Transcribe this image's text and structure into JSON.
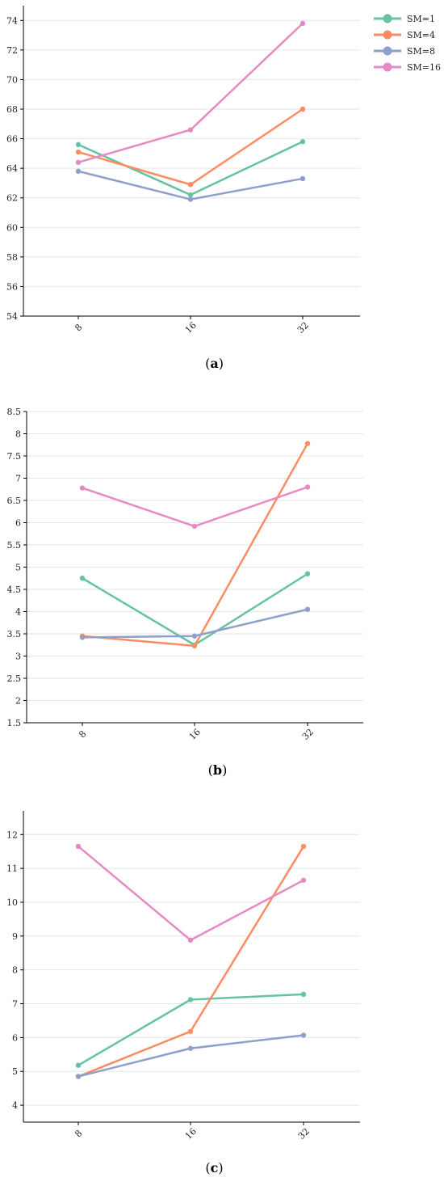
{
  "colors": {
    "SM=1": "#66c2a5",
    "SM=4": "#fc8d62",
    "SM=8": "#8da0cb",
    "SM=16": "#e78ac3",
    "axis": "#000000",
    "grid": "#e6e6e6"
  },
  "legend": {
    "placement": "top-right of panel (a)",
    "items": [
      "SM=1",
      "SM=4",
      "SM=8",
      "SM=16"
    ]
  },
  "chart_data": [
    {
      "panel": "a",
      "type": "line",
      "caption_letter": "a",
      "categories": [
        "8",
        "16",
        "32"
      ],
      "ylim": [
        54,
        75
      ],
      "yticks": [
        54,
        56,
        58,
        60,
        62,
        64,
        66,
        68,
        70,
        72,
        74
      ],
      "ytick_labels": [
        "54",
        "56",
        "58",
        "60",
        "62",
        "64",
        "66",
        "68",
        "70",
        "72",
        "74"
      ],
      "grid": true,
      "series": [
        {
          "name": "SM=1",
          "values": [
            65.6,
            62.2,
            65.8
          ]
        },
        {
          "name": "SM=4",
          "values": [
            65.1,
            62.9,
            68.0
          ]
        },
        {
          "name": "SM=8",
          "values": [
            63.8,
            61.9,
            63.3
          ]
        },
        {
          "name": "SM=16",
          "values": [
            64.4,
            66.6,
            73.8
          ]
        }
      ]
    },
    {
      "panel": "b",
      "type": "line",
      "caption_letter": "b",
      "categories": [
        "8",
        "16",
        "32"
      ],
      "ylim": [
        1.5,
        8.5
      ],
      "yticks": [
        1.5,
        2,
        2.5,
        3,
        3.5,
        4,
        4.5,
        5,
        5.5,
        6,
        6.5,
        7,
        7.5,
        8,
        8.5
      ],
      "ytick_labels": [
        "1.5",
        "2",
        "2.5",
        "3",
        "3.5",
        "4",
        "4.5",
        "5",
        "5.5",
        "6",
        "6.5",
        "7",
        "7.5",
        "8",
        "8.5"
      ],
      "grid": true,
      "series": [
        {
          "name": "SM=1",
          "values": [
            4.75,
            3.25,
            4.85
          ]
        },
        {
          "name": "SM=4",
          "values": [
            3.45,
            3.23,
            7.78
          ]
        },
        {
          "name": "SM=8",
          "values": [
            3.42,
            3.45,
            4.05
          ]
        },
        {
          "name": "SM=16",
          "values": [
            6.78,
            5.92,
            6.8
          ]
        }
      ]
    },
    {
      "panel": "c",
      "type": "line",
      "caption_letter": "c",
      "categories": [
        "8",
        "16",
        "32"
      ],
      "ylim": [
        3.5,
        12.7
      ],
      "yticks": [
        4,
        5,
        6,
        7,
        8,
        9,
        10,
        11,
        12
      ],
      "ytick_labels": [
        "4",
        "5",
        "6",
        "7",
        "8",
        "9",
        "10",
        "11",
        "12"
      ],
      "grid": true,
      "series": [
        {
          "name": "SM=1",
          "values": [
            5.18,
            7.12,
            7.28
          ]
        },
        {
          "name": "SM=4",
          "values": [
            4.85,
            6.18,
            11.65
          ]
        },
        {
          "name": "SM=8",
          "values": [
            4.85,
            5.68,
            6.07
          ]
        },
        {
          "name": "SM=16",
          "values": [
            11.65,
            8.88,
            10.65
          ]
        }
      ]
    }
  ]
}
